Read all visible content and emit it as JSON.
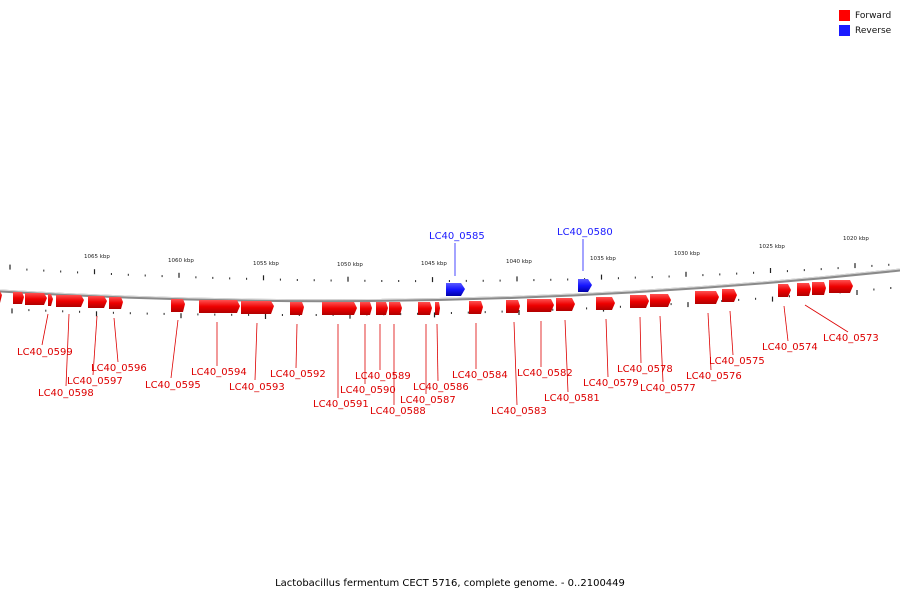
{
  "legend": {
    "forward_label": "Forward",
    "reverse_label": "Reverse",
    "forward_color": "#ff0000",
    "reverse_color": "#1a1aff"
  },
  "caption": "Lactobacillus fermentum CECT 5716, complete genome. - 0..2100449",
  "scale": {
    "unit": "kbp",
    "labels": [
      "1065 kbp",
      "1060 kbp",
      "1055 kbp",
      "1050 kbp",
      "1045 kbp",
      "1040 kbp",
      "1035 kbp",
      "1030 kbp",
      "1025 kbp",
      "1020 kbp"
    ]
  },
  "genes": {
    "reverse": [
      "LC40_0585",
      "LC40_0580"
    ],
    "forward": [
      "LC40_0599",
      "LC40_0598",
      "LC40_0597",
      "LC40_0596",
      "LC40_0595",
      "LC40_0594",
      "LC40_0593",
      "LC40_0592",
      "LC40_0591",
      "LC40_0590",
      "LC40_0589",
      "LC40_0588",
      "LC40_0587",
      "LC40_0586",
      "LC40_0584",
      "LC40_0583",
      "LC40_0582",
      "LC40_0581",
      "LC40_0579",
      "LC40_0578",
      "LC40_0577",
      "LC40_0576",
      "LC40_0575",
      "LC40_0574",
      "LC40_0573"
    ]
  }
}
